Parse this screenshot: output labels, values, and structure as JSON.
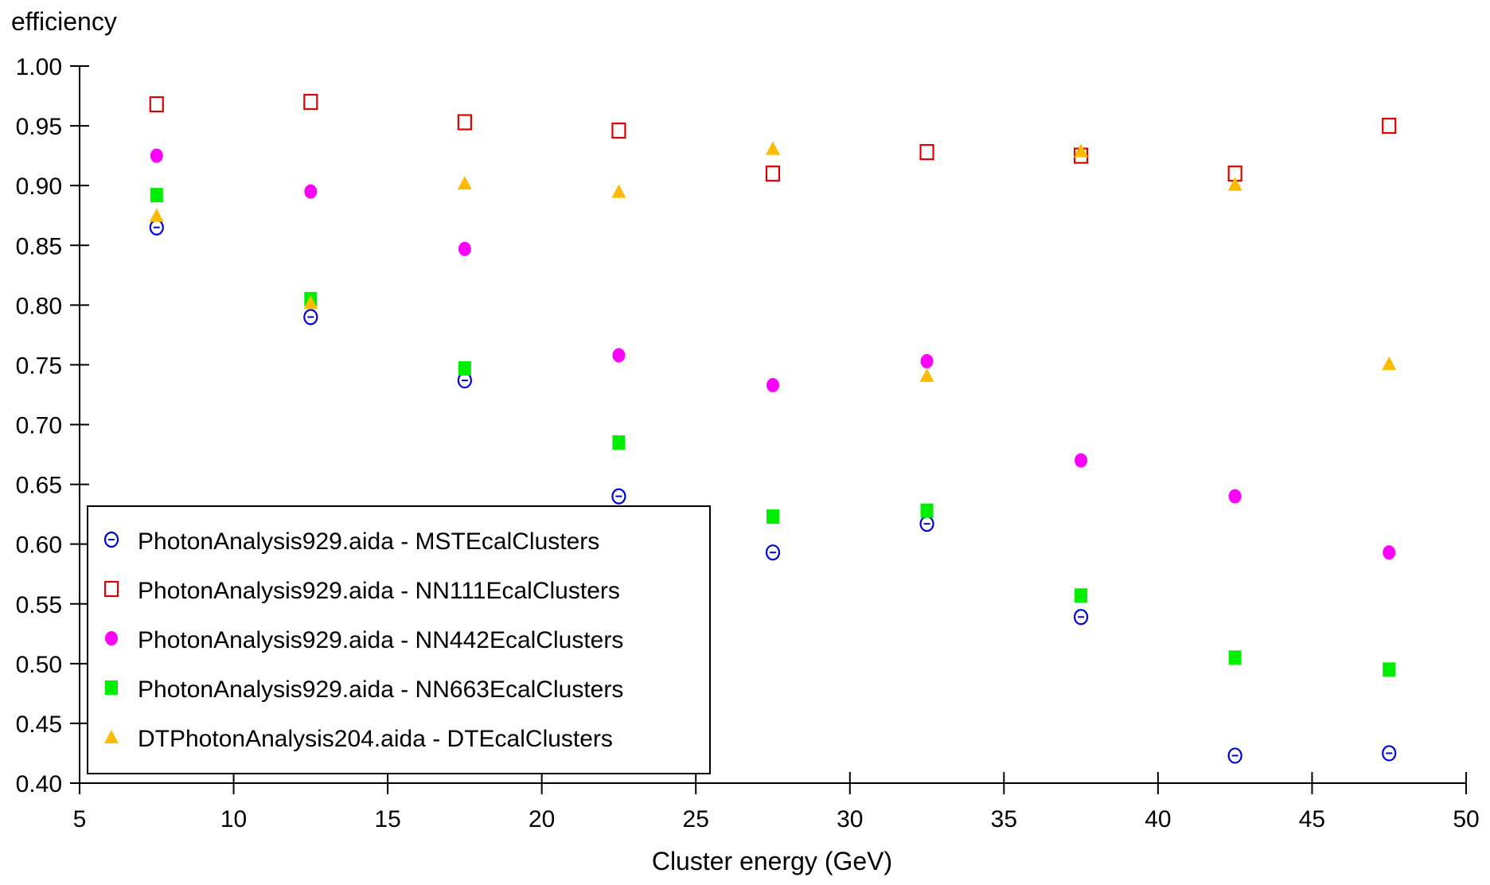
{
  "chart_data": {
    "type": "scatter",
    "xlabel": "Cluster energy (GeV)",
    "ylabel": "efficiency",
    "xlim": [
      5,
      50
    ],
    "ylim": [
      0.4,
      1.0
    ],
    "xticks": [
      "5",
      "10",
      "15",
      "20",
      "25",
      "30",
      "35",
      "40",
      "45",
      "50"
    ],
    "yticks": [
      "0.40",
      "0.45",
      "0.50",
      "0.55",
      "0.60",
      "0.65",
      "0.70",
      "0.75",
      "0.80",
      "0.85",
      "0.90",
      "0.95",
      "1.00"
    ],
    "grid": false,
    "legend_position": "bottom-left",
    "x": [
      7.5,
      12.5,
      17.5,
      22.5,
      27.5,
      32.5,
      37.5,
      42.5,
      47.5
    ],
    "series": [
      {
        "name": "PhotonAnalysis929.aida - MSTEcalClusters",
        "marker": "open-circle",
        "color": "#0000dd",
        "values": [
          0.865,
          0.79,
          0.737,
          0.64,
          0.593,
          0.617,
          0.539,
          0.423,
          0.425
        ]
      },
      {
        "name": "PhotonAnalysis929.aida - NN111EcalClusters",
        "marker": "open-square",
        "color": "#dd0000",
        "values": [
          0.968,
          0.97,
          0.953,
          0.946,
          0.91,
          0.928,
          0.925,
          0.91,
          0.95
        ]
      },
      {
        "name": "PhotonAnalysis929.aida - NN442EcalClusters",
        "marker": "filled-circle",
        "color": "#ff00ff",
        "values": [
          0.925,
          0.895,
          0.847,
          0.758,
          0.733,
          0.753,
          0.67,
          0.64,
          0.593
        ]
      },
      {
        "name": "PhotonAnalysis929.aida - NN663EcalClusters",
        "marker": "filled-square",
        "color": "#00ee00",
        "values": [
          0.892,
          0.805,
          0.747,
          0.685,
          0.623,
          0.628,
          0.557,
          0.505,
          0.495
        ]
      },
      {
        "name": "DTPhotonAnalysis204.aida - DTEcalClusters",
        "marker": "filled-triangle",
        "color": "#ffbb00",
        "values": [
          0.875,
          0.802,
          0.902,
          0.895,
          0.931,
          0.741,
          0.929,
          0.901,
          0.751
        ]
      }
    ]
  }
}
